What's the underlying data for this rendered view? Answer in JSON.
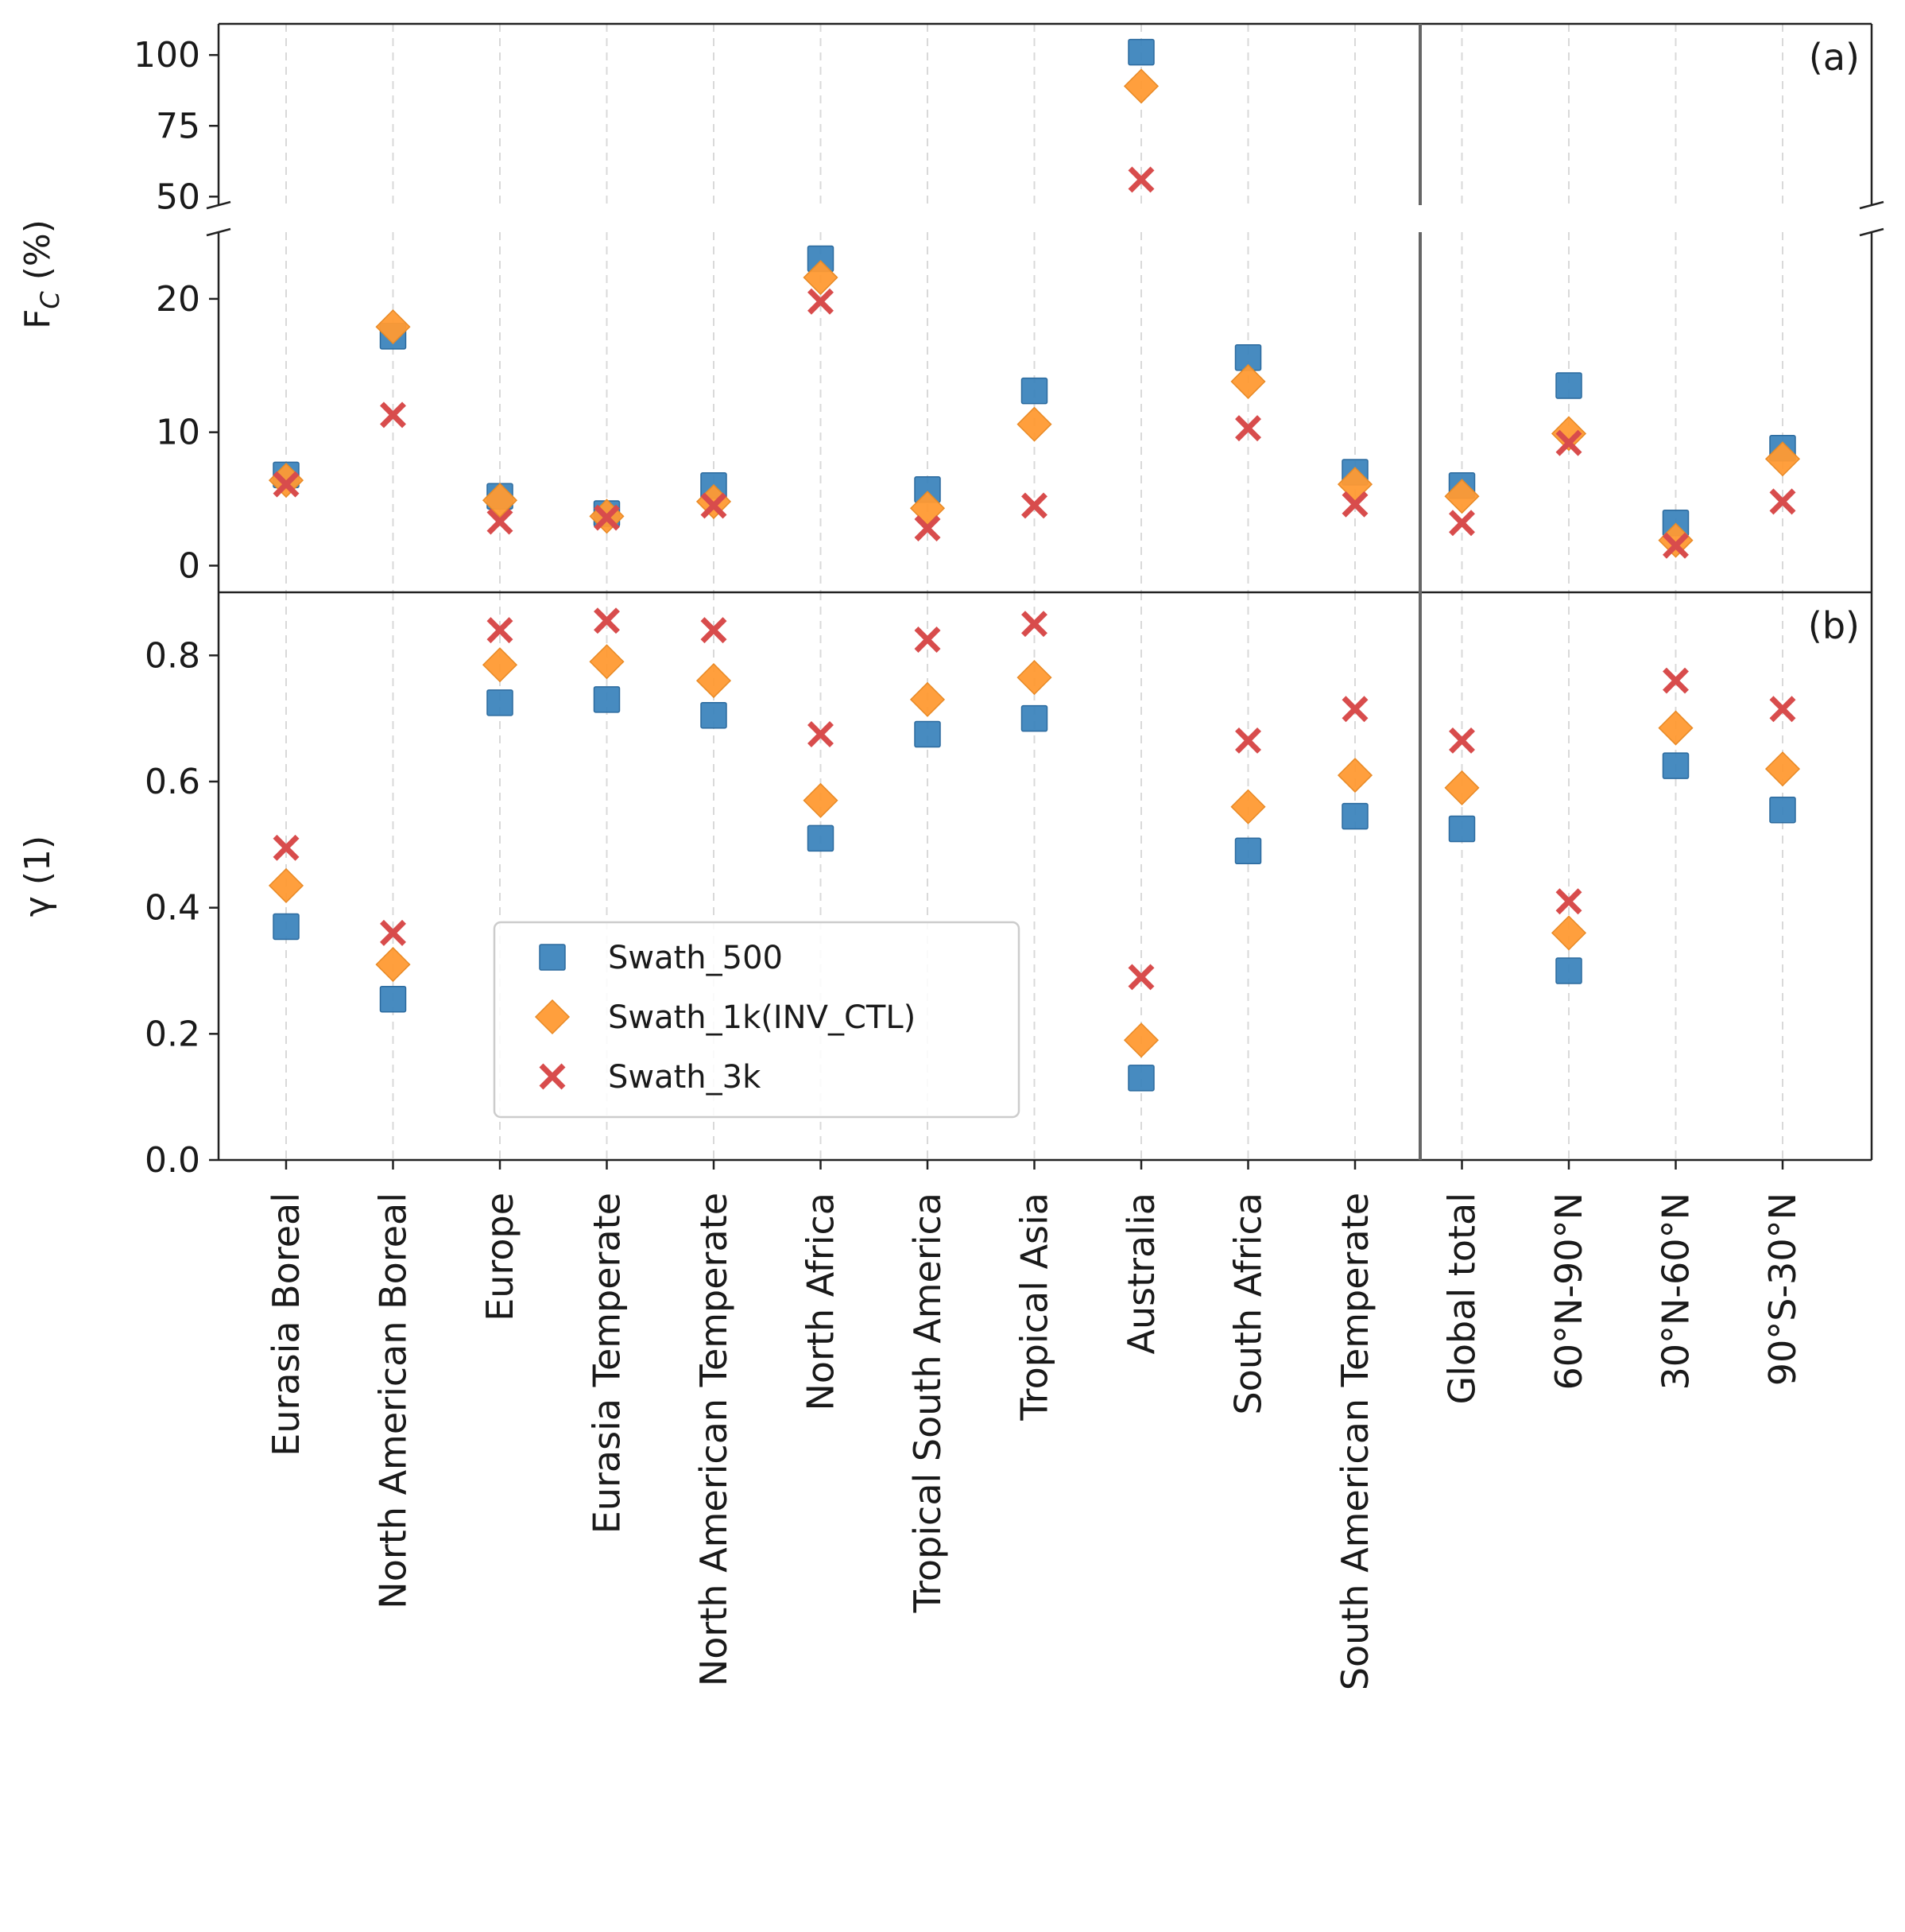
{
  "chart_data": {
    "type": "scatter",
    "categories": [
      "Eurasia Boreal",
      "North American Boreal",
      "Europe",
      "Eurasia Temperate",
      "North American Temperate",
      "North Africa",
      "Tropical South America",
      "Tropical Asia",
      "Australia",
      "South Africa",
      "South American Temperate",
      "Global total",
      "60°N-90°N",
      "30°N-60°N",
      "90°S-30°N"
    ],
    "legend": [
      "Swath_500",
      "Swath_1k(INV_CTL)",
      "Swath_3k"
    ],
    "colors": {
      "Swath_500": "#3d85bd",
      "Swath_1k(INV_CTL)": "#ff9a33",
      "Swath_3k": "#d84c4c"
    },
    "panels": [
      {
        "label": "(a)",
        "ylabel": "F",
        "ylabel_sub": "C",
        "ylabel_unit": "(%)",
        "ylim_upper": [
          47,
          111
        ],
        "ylim_lower": [
          -2,
          25
        ],
        "yticks_upper": [
          "100",
          "75",
          "50"
        ],
        "yticks_lower": [
          "20",
          "10",
          "0"
        ],
        "series": [
          {
            "name": "Swath_500",
            "values": [
              6.8,
              17.2,
              5.2,
              3.9,
              6.0,
              23.0,
              5.7,
              13.1,
              101,
              15.6,
              7.0,
              6.0,
              13.5,
              3.2,
              8.8
            ]
          },
          {
            "name": "Swath_1k(INV_CTL)",
            "values": [
              6.4,
              17.9,
              4.9,
              3.7,
              4.8,
              21.6,
              4.3,
              10.6,
              89,
              13.8,
              6.1,
              5.2,
              9.9,
              1.9,
              8.0
            ]
          },
          {
            "name": "Swath_3k",
            "values": [
              6.1,
              11.3,
              3.3,
              3.6,
              4.5,
              19.8,
              2.8,
              4.5,
              56,
              10.3,
              4.6,
              3.2,
              9.2,
              1.5,
              4.8
            ]
          }
        ]
      },
      {
        "label": "(b)",
        "ylabel": "γ (1)",
        "ylim": [
          0.0,
          0.9
        ],
        "yticks": [
          "0.0",
          "0.2",
          "0.4",
          "0.6",
          "0.8"
        ],
        "series": [
          {
            "name": "Swath_500",
            "values": [
              0.37,
              0.255,
              0.725,
              0.73,
              0.705,
              0.51,
              0.675,
              0.7,
              0.13,
              0.49,
              0.545,
              0.525,
              0.3,
              0.625,
              0.555
            ]
          },
          {
            "name": "Swath_1k(INV_CTL)",
            "values": [
              0.435,
              0.31,
              0.785,
              0.79,
              0.76,
              0.57,
              0.73,
              0.765,
              0.19,
              0.56,
              0.61,
              0.59,
              0.36,
              0.685,
              0.62
            ]
          },
          {
            "name": "Swath_3k",
            "values": [
              0.495,
              0.36,
              0.84,
              0.855,
              0.84,
              0.675,
              0.825,
              0.85,
              0.29,
              0.665,
              0.715,
              0.665,
              0.41,
              0.76,
              0.715
            ]
          }
        ]
      }
    ]
  }
}
